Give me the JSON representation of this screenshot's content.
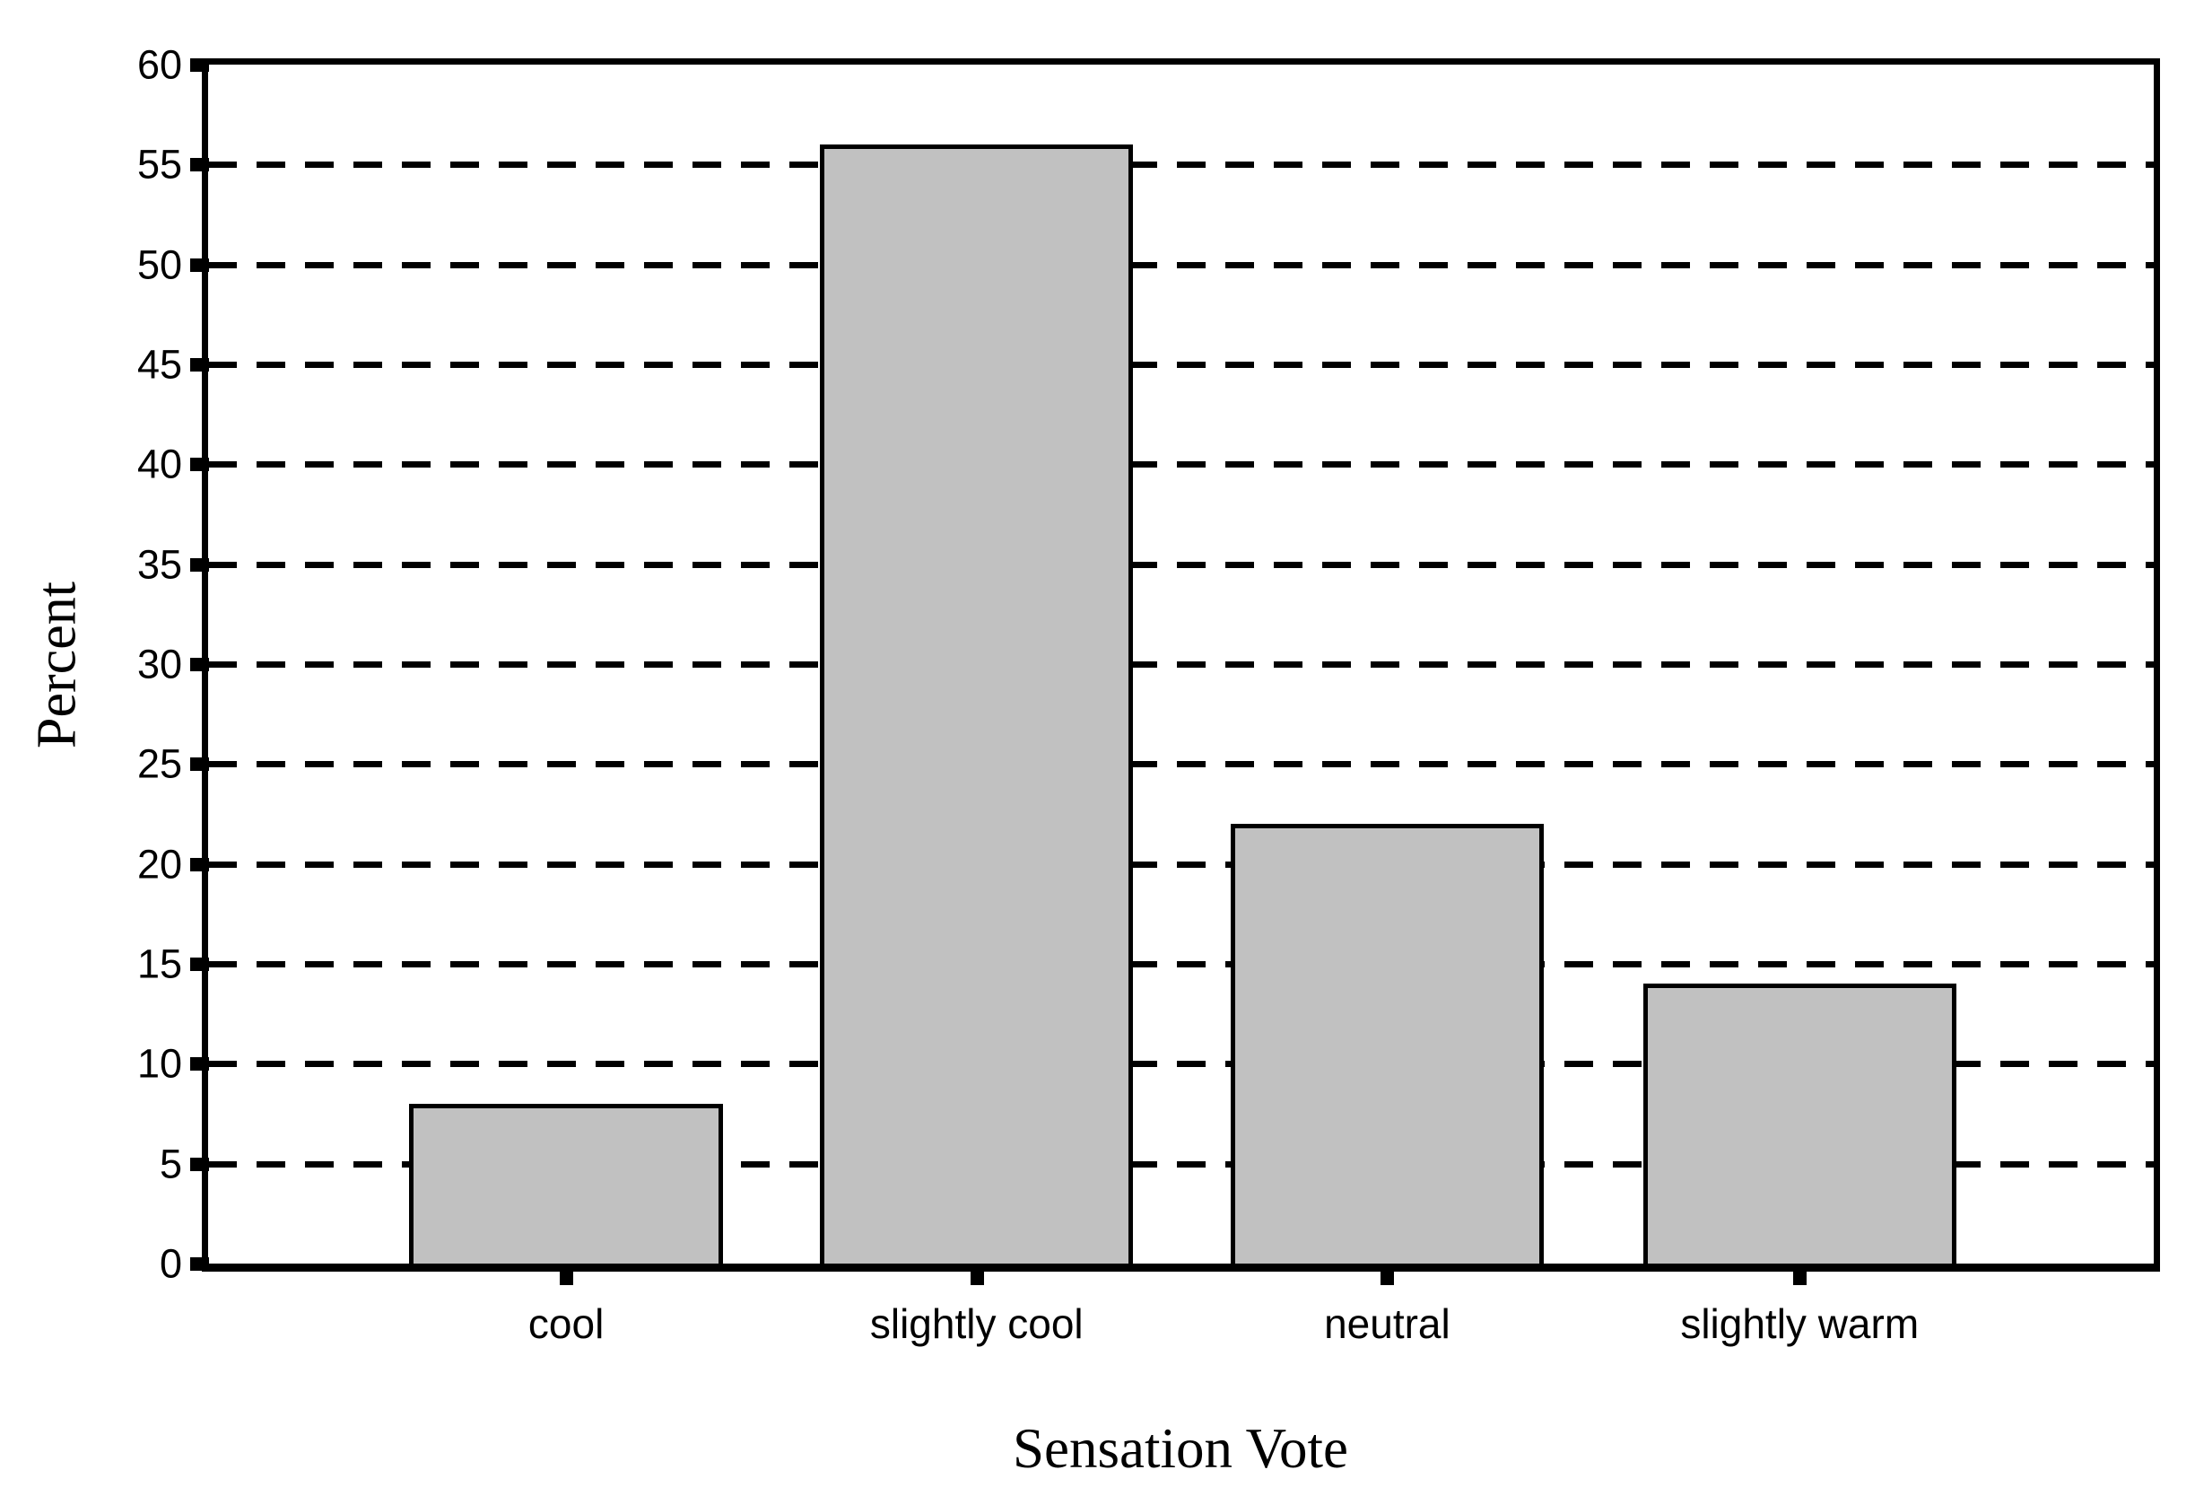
{
  "figure": {
    "background": "#ffffff",
    "frame_color": "#000000"
  },
  "chart_data": {
    "type": "bar",
    "title": "",
    "categories": [
      "cool",
      "slightly cool",
      "neutral",
      "slightly warm"
    ],
    "values": [
      8,
      56,
      22,
      14
    ],
    "xlabel": "Sensation Vote",
    "ylabel": "Percent",
    "ylim": [
      0,
      60
    ],
    "ytick_interval": 5,
    "ytick_labels": [
      "0",
      "5",
      "10",
      "15",
      "20",
      "25",
      "30",
      "35",
      "40",
      "45",
      "50",
      "55",
      "60"
    ],
    "grid": "horizontal-dashed",
    "gridline_color": "#000000",
    "legend": "none",
    "bar_fill": "#c1c1c1",
    "bar_border": "#000000"
  }
}
